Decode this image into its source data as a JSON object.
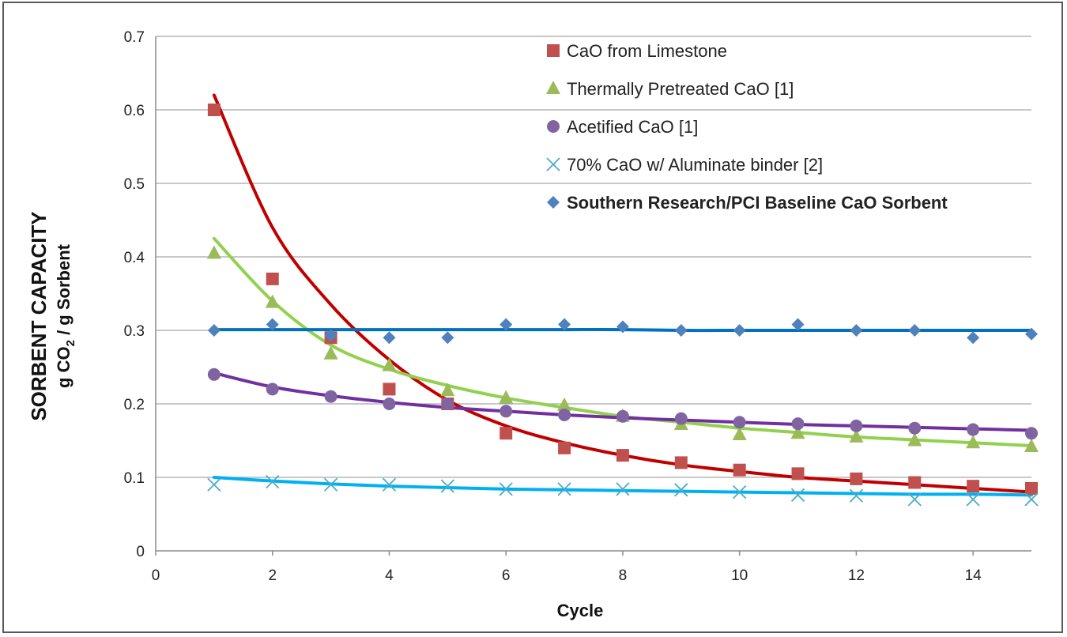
{
  "chart_data": {
    "type": "scatter",
    "title": "",
    "xlabel": "Cycle",
    "ylabel": {
      "main": "SORBENT CAPACITY",
      "sub_prefix": "g CO",
      "sub_subscript": "2",
      "sub_suffix": " / g Sorbent"
    },
    "xlim": [
      0,
      15
    ],
    "ylim": [
      0,
      0.7
    ],
    "xticks": [
      0,
      2,
      4,
      6,
      8,
      10,
      12,
      14
    ],
    "yticks": [
      0,
      0.1,
      0.2,
      0.3,
      0.4,
      0.5,
      0.6,
      0.7
    ],
    "xtick_labels": [
      "0",
      "2",
      "4",
      "6",
      "8",
      "10",
      "12",
      "14"
    ],
    "ytick_labels": [
      "0",
      "0.1",
      "0.2",
      "0.3",
      "0.4",
      "0.5",
      "0.6",
      "0.7"
    ],
    "grid": "horizontal",
    "legend_position": "top-right",
    "series": [
      {
        "name": "CaO from Limestone",
        "marker": "square",
        "color": "#c0504d",
        "trend_color": "#c00000",
        "bold": false,
        "x": [
          1,
          2,
          3,
          4,
          5,
          6,
          7,
          8,
          9,
          10,
          11,
          12,
          13,
          14,
          15
        ],
        "y": [
          0.6,
          0.37,
          0.29,
          0.22,
          0.2,
          0.16,
          0.14,
          0.13,
          0.12,
          0.11,
          0.105,
          0.098,
          0.093,
          0.088,
          0.085
        ],
        "trend": [
          0.62,
          0.44,
          0.335,
          0.26,
          0.205,
          0.17,
          0.147,
          0.13,
          0.117,
          0.108,
          0.1,
          0.095,
          0.09,
          0.085,
          0.08
        ]
      },
      {
        "name": "Thermally Pretreated CaO [1]",
        "marker": "triangle",
        "color": "#9bbb59",
        "trend_color": "#92d050",
        "bold": false,
        "x": [
          1,
          2,
          3,
          4,
          5,
          6,
          7,
          8,
          9,
          10,
          11,
          12,
          13,
          14,
          15
        ],
        "y": [
          0.405,
          0.338,
          0.268,
          0.252,
          0.218,
          0.208,
          0.198,
          0.183,
          0.172,
          0.158,
          0.16,
          0.155,
          0.15,
          0.147,
          0.142
        ],
        "trend": [
          0.425,
          0.34,
          0.28,
          0.247,
          0.225,
          0.208,
          0.195,
          0.183,
          0.175,
          0.167,
          0.161,
          0.155,
          0.151,
          0.147,
          0.143
        ]
      },
      {
        "name": "Acetified CaO [1]",
        "marker": "circle",
        "color": "#8064a2",
        "trend_color": "#7030a0",
        "bold": false,
        "x": [
          1,
          2,
          3,
          4,
          5,
          6,
          7,
          8,
          9,
          10,
          11,
          12,
          13,
          14,
          15
        ],
        "y": [
          0.24,
          0.22,
          0.21,
          0.2,
          0.2,
          0.19,
          0.185,
          0.183,
          0.18,
          0.175,
          0.173,
          0.17,
          0.167,
          0.165,
          0.16
        ],
        "trend": [
          0.242,
          0.223,
          0.211,
          0.202,
          0.195,
          0.19,
          0.185,
          0.181,
          0.178,
          0.175,
          0.172,
          0.17,
          0.168,
          0.166,
          0.164
        ]
      },
      {
        "name": "70% CaO w/ Aluminate binder [2]",
        "marker": "x",
        "color": "#4bacc6",
        "trend_color": "#00b0f0",
        "bold": false,
        "x": [
          1,
          2,
          3,
          4,
          5,
          6,
          7,
          8,
          9,
          10,
          11,
          12,
          13,
          14,
          15
        ],
        "y": [
          0.09,
          0.094,
          0.09,
          0.09,
          0.088,
          0.084,
          0.084,
          0.084,
          0.083,
          0.08,
          0.076,
          0.075,
          0.07,
          0.07,
          0.07
        ],
        "trend": [
          0.1,
          0.095,
          0.091,
          0.088,
          0.086,
          0.084,
          0.083,
          0.082,
          0.081,
          0.08,
          0.079,
          0.078,
          0.077,
          0.077,
          0.076
        ]
      },
      {
        "name": "Southern Research/PCI Baseline CaO Sorbent",
        "marker": "diamond",
        "color": "#4f81bd",
        "trend_color": "#0070c0",
        "bold": true,
        "x": [
          1,
          2,
          3,
          4,
          5,
          6,
          7,
          8,
          9,
          10,
          11,
          12,
          13,
          14,
          15
        ],
        "y": [
          0.3,
          0.308,
          0.293,
          0.29,
          0.29,
          0.308,
          0.308,
          0.305,
          0.3,
          0.3,
          0.308,
          0.3,
          0.3,
          0.29,
          0.295
        ],
        "trend": [
          0.301,
          0.301,
          0.301,
          0.301,
          0.301,
          0.301,
          0.301,
          0.301,
          0.3,
          0.3,
          0.3,
          0.3,
          0.3,
          0.3,
          0.3
        ]
      }
    ]
  }
}
